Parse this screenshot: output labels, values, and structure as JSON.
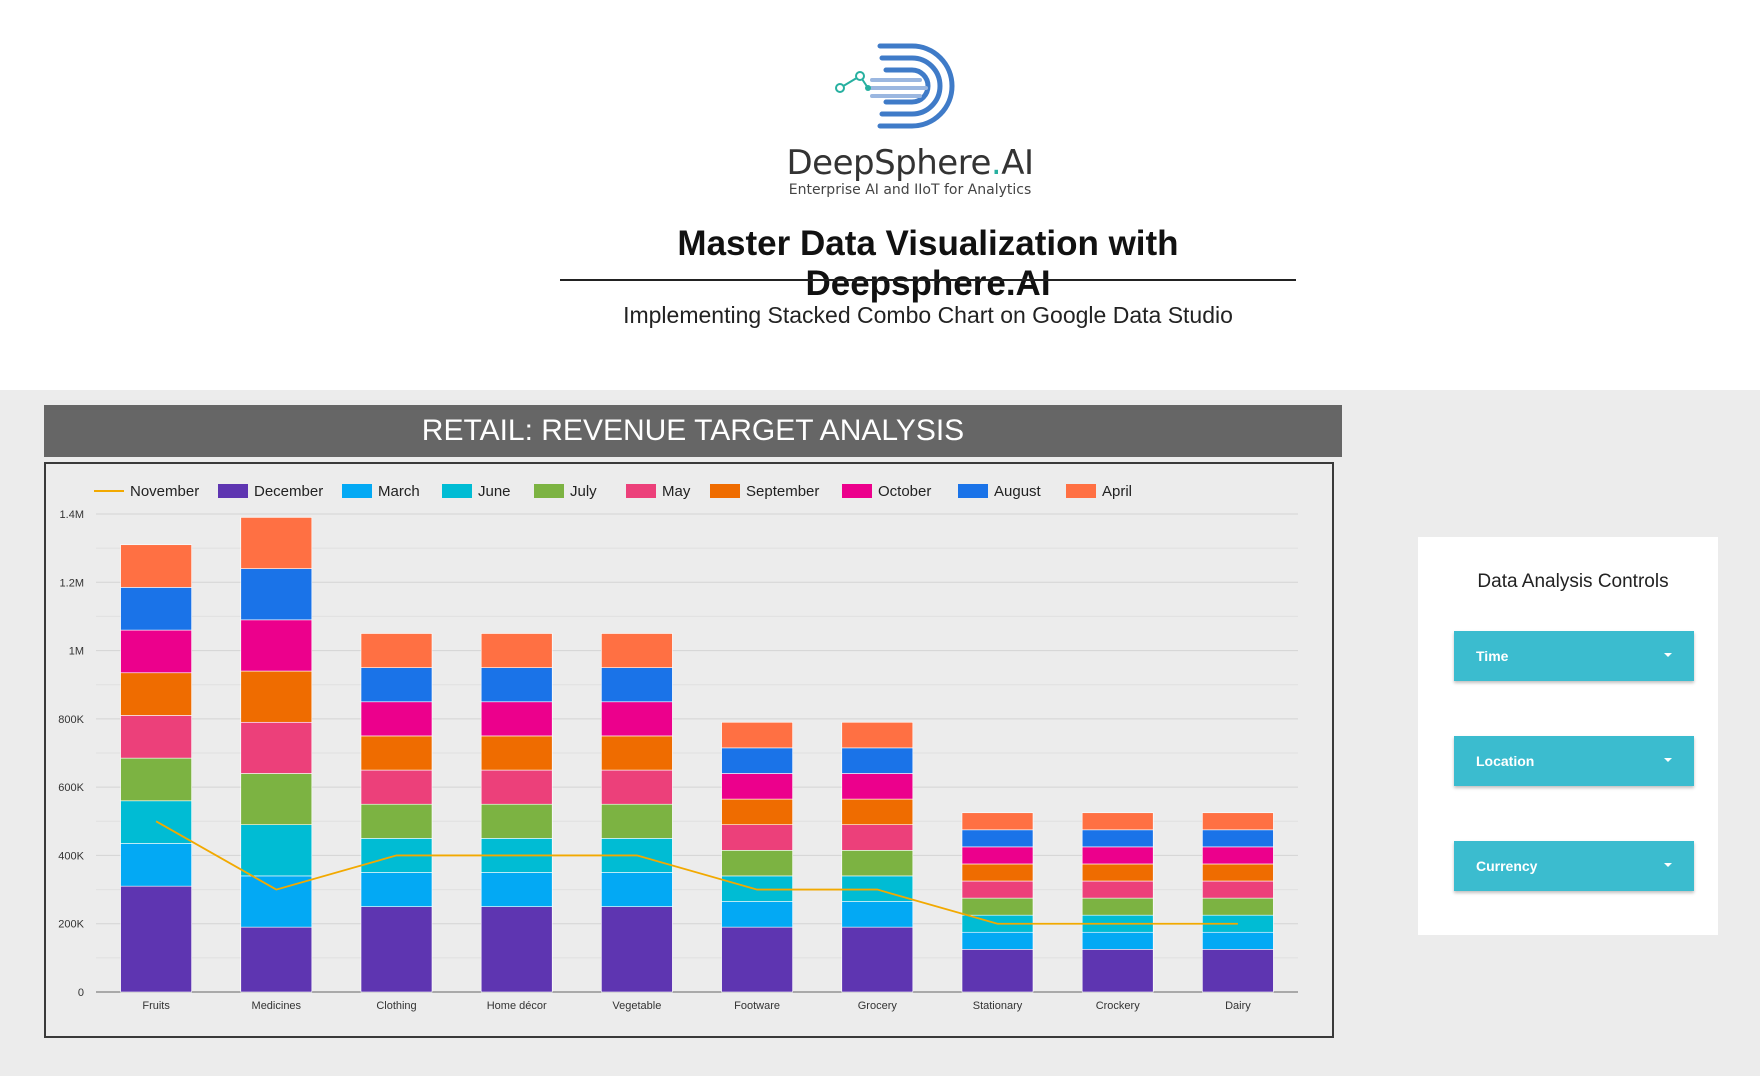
{
  "brand": {
    "name_main": "DeepSphere",
    "name_dot": ".",
    "name_end": "AI",
    "tagline": "Enterprise AI and IIoT for Analytics"
  },
  "header": {
    "title": "Master Data Visualization with Deepsphere.AI",
    "subtitle": "Implementing Stacked Combo Chart on Google Data Studio"
  },
  "banner": {
    "title": "RETAIL: REVENUE TARGET ANALYSIS"
  },
  "controls": {
    "title": "Data Analysis Controls",
    "items": [
      {
        "label": "Time"
      },
      {
        "label": "Location"
      },
      {
        "label": "Currency"
      }
    ]
  },
  "colors": {
    "brand_blue": "#3f7bc8",
    "brand_teal": "#27b0a0",
    "control_bg": "#3bbccf",
    "banner_bg": "#666666"
  },
  "chart_data": {
    "type": "bar",
    "stacked": true,
    "categories": [
      "Fruits",
      "Medicines",
      "Clothing",
      "Home décor",
      "Vegetable",
      "Footware",
      "Grocery",
      "Stationary",
      "Crockery",
      "Dairy"
    ],
    "y_ticks": [
      "0",
      "200K",
      "400K",
      "600K",
      "800K",
      "1M",
      "1.2M",
      "1.4M"
    ],
    "ylim": [
      0,
      1400000
    ],
    "grid": true,
    "legend_position": "top-left",
    "series": [
      {
        "name": "December",
        "color": "#5e35b1",
        "values": [
          310000,
          190000,
          250000,
          250000,
          250000,
          190000,
          190000,
          125000,
          125000,
          125000
        ]
      },
      {
        "name": "March",
        "color": "#03a9f4",
        "values": [
          125000,
          150000,
          100000,
          100000,
          100000,
          75000,
          75000,
          50000,
          50000,
          50000
        ]
      },
      {
        "name": "June",
        "color": "#00bcd4",
        "values": [
          125000,
          150000,
          100000,
          100000,
          100000,
          75000,
          75000,
          50000,
          50000,
          50000
        ]
      },
      {
        "name": "July",
        "color": "#7cb342",
        "values": [
          125000,
          150000,
          100000,
          100000,
          100000,
          75000,
          75000,
          50000,
          50000,
          50000
        ]
      },
      {
        "name": "May",
        "color": "#ec407a",
        "values": [
          125000,
          150000,
          100000,
          100000,
          100000,
          75000,
          75000,
          50000,
          50000,
          50000
        ]
      },
      {
        "name": "September",
        "color": "#ef6c00",
        "values": [
          125000,
          150000,
          100000,
          100000,
          100000,
          75000,
          75000,
          50000,
          50000,
          50000
        ]
      },
      {
        "name": "October",
        "color": "#ec008c",
        "values": [
          125000,
          150000,
          100000,
          100000,
          100000,
          75000,
          75000,
          50000,
          50000,
          50000
        ]
      },
      {
        "name": "August",
        "color": "#1a73e8",
        "values": [
          125000,
          150000,
          100000,
          100000,
          100000,
          75000,
          75000,
          50000,
          50000,
          50000
        ]
      },
      {
        "name": "April",
        "color": "#ff7043",
        "values": [
          125000,
          150000,
          100000,
          100000,
          100000,
          75000,
          75000,
          50000,
          50000,
          50000
        ]
      }
    ],
    "line": {
      "name": "November",
      "color": "#f2a900",
      "values": [
        500000,
        300000,
        400000,
        400000,
        400000,
        300000,
        300000,
        200000,
        200000,
        200000
      ]
    },
    "legend_order": [
      "November",
      "December",
      "March",
      "June",
      "July",
      "May",
      "September",
      "October",
      "August",
      "April"
    ]
  }
}
